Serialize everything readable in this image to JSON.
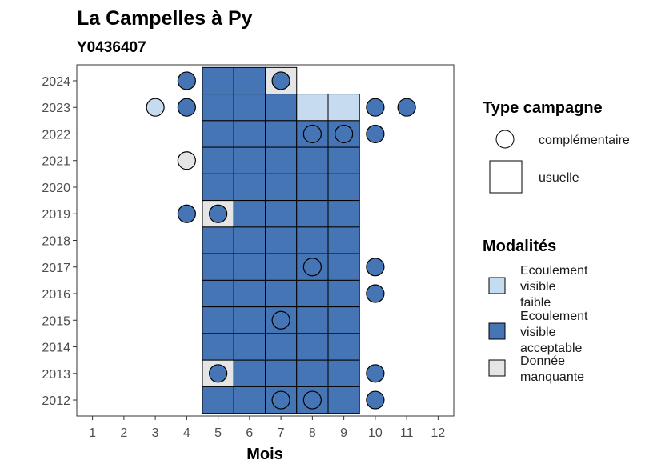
{
  "chart_data": {
    "type": "heatmap",
    "title": "La Campelles à Py",
    "subtitle": "Y0436407",
    "xlabel": "Mois",
    "ylabel": "",
    "x_ticks": [
      1,
      2,
      3,
      4,
      5,
      6,
      7,
      8,
      9,
      10,
      11,
      12
    ],
    "y_ticks": [
      2012,
      2013,
      2014,
      2015,
      2016,
      2017,
      2018,
      2019,
      2020,
      2021,
      2022,
      2023,
      2024
    ],
    "xlim": [
      0.5,
      12.5
    ],
    "ylim": [
      2011.4,
      2024.6
    ],
    "colors": {
      "Ecoulement visible faible": "#c6dbef",
      "Ecoulement visible acceptable": "#4575b4",
      "Donnée manquante": "#e5e5e5"
    },
    "legend_type": {
      "title": "Type campagne",
      "items": [
        {
          "shape": "circle",
          "label": "complémentaire"
        },
        {
          "shape": "square",
          "label": "usuelle"
        }
      ]
    },
    "legend_modalites": {
      "title": "Modalités",
      "items": [
        {
          "key": "Ecoulement visible faible",
          "lines": [
            "Ecoulement",
            "visible",
            "faible"
          ]
        },
        {
          "key": "Ecoulement visible acceptable",
          "lines": [
            "Ecoulement",
            "visible",
            "acceptable"
          ]
        },
        {
          "key": "Donnée manquante",
          "lines": [
            "Donnée",
            "manquante"
          ]
        }
      ]
    },
    "usuelle": [
      {
        "year": 2024,
        "months": [
          5,
          6
        ],
        "value": "Ecoulement visible acceptable"
      },
      {
        "year": 2024,
        "months": [
          7
        ],
        "value": "Donnée manquante"
      },
      {
        "year": 2023,
        "months": [
          5,
          6,
          7
        ],
        "value": "Ecoulement visible acceptable"
      },
      {
        "year": 2023,
        "months": [
          8,
          9
        ],
        "value": "Ecoulement visible faible"
      },
      {
        "year": 2022,
        "months": [
          5,
          6,
          7,
          8,
          9
        ],
        "value": "Ecoulement visible acceptable"
      },
      {
        "year": 2021,
        "months": [
          5,
          6,
          7,
          8,
          9
        ],
        "value": "Ecoulement visible acceptable"
      },
      {
        "year": 2020,
        "months": [
          5,
          6,
          7,
          8,
          9
        ],
        "value": "Ecoulement visible acceptable"
      },
      {
        "year": 2019,
        "months": [
          5
        ],
        "value": "Donnée manquante"
      },
      {
        "year": 2019,
        "months": [
          6,
          7,
          8,
          9
        ],
        "value": "Ecoulement visible acceptable"
      },
      {
        "year": 2018,
        "months": [
          5,
          6,
          7,
          8,
          9
        ],
        "value": "Ecoulement visible acceptable"
      },
      {
        "year": 2017,
        "months": [
          5,
          6,
          7,
          8,
          9
        ],
        "value": "Ecoulement visible acceptable"
      },
      {
        "year": 2016,
        "months": [
          5,
          6,
          7,
          8,
          9
        ],
        "value": "Ecoulement visible acceptable"
      },
      {
        "year": 2015,
        "months": [
          5,
          6,
          7,
          8,
          9
        ],
        "value": "Ecoulement visible acceptable"
      },
      {
        "year": 2014,
        "months": [
          5,
          6,
          7,
          8,
          9
        ],
        "value": "Ecoulement visible acceptable"
      },
      {
        "year": 2013,
        "months": [
          5
        ],
        "value": "Donnée manquante"
      },
      {
        "year": 2013,
        "months": [
          6,
          7,
          8,
          9
        ],
        "value": "Ecoulement visible acceptable"
      },
      {
        "year": 2012,
        "months": [
          5,
          6,
          7,
          8,
          9
        ],
        "value": "Ecoulement visible acceptable"
      }
    ],
    "complementaire": [
      {
        "year": 2024,
        "month": 4,
        "value": "Ecoulement visible acceptable"
      },
      {
        "year": 2024,
        "month": 7,
        "value": "Ecoulement visible acceptable"
      },
      {
        "year": 2023,
        "month": 3,
        "value": "Ecoulement visible faible"
      },
      {
        "year": 2023,
        "month": 4,
        "value": "Ecoulement visible acceptable"
      },
      {
        "year": 2023,
        "month": 10,
        "value": "Ecoulement visible acceptable"
      },
      {
        "year": 2023,
        "month": 11,
        "value": "Ecoulement visible acceptable"
      },
      {
        "year": 2022,
        "month": 8,
        "value": "Ecoulement visible acceptable"
      },
      {
        "year": 2022,
        "month": 9,
        "value": "Ecoulement visible acceptable"
      },
      {
        "year": 2022,
        "month": 10,
        "value": "Ecoulement visible acceptable"
      },
      {
        "year": 2021,
        "month": 4,
        "value": "Donnée manquante"
      },
      {
        "year": 2019,
        "month": 4,
        "value": "Ecoulement visible acceptable"
      },
      {
        "year": 2019,
        "month": 5,
        "value": "Ecoulement visible acceptable"
      },
      {
        "year": 2017,
        "month": 8,
        "value": "Ecoulement visible acceptable"
      },
      {
        "year": 2017,
        "month": 10,
        "value": "Ecoulement visible acceptable"
      },
      {
        "year": 2016,
        "month": 10,
        "value": "Ecoulement visible acceptable"
      },
      {
        "year": 2015,
        "month": 7,
        "value": "Ecoulement visible acceptable"
      },
      {
        "year": 2013,
        "month": 5,
        "value": "Ecoulement visible acceptable"
      },
      {
        "year": 2013,
        "month": 10,
        "value": "Ecoulement visible acceptable"
      },
      {
        "year": 2012,
        "month": 7,
        "value": "Ecoulement visible acceptable"
      },
      {
        "year": 2012,
        "month": 8,
        "value": "Ecoulement visible acceptable"
      },
      {
        "year": 2012,
        "month": 10,
        "value": "Ecoulement visible acceptable"
      }
    ]
  }
}
